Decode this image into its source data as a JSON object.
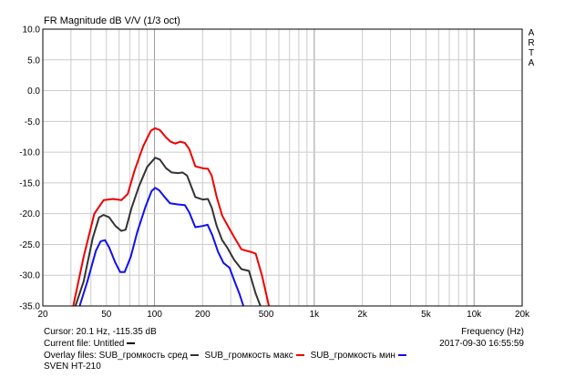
{
  "window": {
    "title": "FR Magnitude dB V/V (1/3 oct)",
    "brand": [
      "A",
      "R",
      "T",
      "A"
    ]
  },
  "chart_data": {
    "type": "line",
    "title": "FR Magnitude dB V/V (1/3 oct)",
    "xlabel": "Frequency (Hz)",
    "ylabel": "",
    "xscale": "log",
    "xlim": [
      20,
      20000
    ],
    "ylim": [
      -35,
      10
    ],
    "grid": true,
    "x_ticks": [
      {
        "v": 20,
        "label": "20"
      },
      {
        "v": 50,
        "label": "50"
      },
      {
        "v": 100,
        "label": "100"
      },
      {
        "v": 200,
        "label": "200"
      },
      {
        "v": 500,
        "label": "500"
      },
      {
        "v": 1000,
        "label": "1k"
      },
      {
        "v": 2000,
        "label": "2k"
      },
      {
        "v": 5000,
        "label": "5k"
      },
      {
        "v": 10000,
        "label": "10k"
      },
      {
        "v": 20000,
        "label": "20k"
      }
    ],
    "y_ticks": [
      {
        "v": 10,
        "label": "10.0"
      },
      {
        "v": 5,
        "label": "5.0"
      },
      {
        "v": 0,
        "label": "0.0"
      },
      {
        "v": -5,
        "label": "-5.0"
      },
      {
        "v": -10,
        "label": "-10.0"
      },
      {
        "v": -15,
        "label": "-15.0"
      },
      {
        "v": -20,
        "label": "-20.0"
      },
      {
        "v": -25,
        "label": "-25.0"
      },
      {
        "v": -30,
        "label": "-30.0"
      },
      {
        "v": -35,
        "label": "-35.0"
      }
    ],
    "series": [
      {
        "name": "SUB_громкость макс",
        "color": "#ee0000",
        "points": [
          [
            31,
            -35
          ],
          [
            36,
            -27
          ],
          [
            42,
            -20
          ],
          [
            48,
            -17.8
          ],
          [
            55,
            -17.6
          ],
          [
            62,
            -17.8
          ],
          [
            68,
            -16.8
          ],
          [
            75,
            -13
          ],
          [
            85,
            -9
          ],
          [
            95,
            -6.5
          ],
          [
            101,
            -6.1
          ],
          [
            108,
            -6.4
          ],
          [
            118,
            -7.6
          ],
          [
            126,
            -8.3
          ],
          [
            135,
            -8.6
          ],
          [
            145,
            -8.3
          ],
          [
            155,
            -8.5
          ],
          [
            165,
            -9.5
          ],
          [
            180,
            -12.3
          ],
          [
            200,
            -12.6
          ],
          [
            216,
            -12.7
          ],
          [
            228,
            -13.8
          ],
          [
            245,
            -17.3
          ],
          [
            265,
            -20.3
          ],
          [
            285,
            -21.8
          ],
          [
            315,
            -23.8
          ],
          [
            350,
            -25.8
          ],
          [
            400,
            -26.2
          ],
          [
            430,
            -26.5
          ],
          [
            470,
            -30
          ],
          [
            520,
            -35
          ]
        ]
      },
      {
        "name": "SUB_громкость сред",
        "color": "#333333",
        "points": [
          [
            32,
            -35
          ],
          [
            36,
            -31
          ],
          [
            41,
            -24
          ],
          [
            45,
            -20.6
          ],
          [
            48,
            -20.2
          ],
          [
            52,
            -20.6
          ],
          [
            57,
            -22
          ],
          [
            62,
            -22.8
          ],
          [
            66,
            -22.6
          ],
          [
            72,
            -19
          ],
          [
            80,
            -15.5
          ],
          [
            90,
            -12.4
          ],
          [
            101,
            -10.9
          ],
          [
            108,
            -11.2
          ],
          [
            118,
            -12.6
          ],
          [
            128,
            -13.3
          ],
          [
            140,
            -13.4
          ],
          [
            150,
            -13.3
          ],
          [
            160,
            -13.8
          ],
          [
            180,
            -17.3
          ],
          [
            200,
            -17.7
          ],
          [
            216,
            -17.6
          ],
          [
            228,
            -19
          ],
          [
            245,
            -22
          ],
          [
            265,
            -24.3
          ],
          [
            285,
            -25.5
          ],
          [
            315,
            -27.5
          ],
          [
            350,
            -29
          ],
          [
            390,
            -29.3
          ],
          [
            430,
            -33
          ],
          [
            460,
            -35
          ]
        ]
      },
      {
        "name": "SUB_громкость мин",
        "color": "#1010ee",
        "points": [
          [
            34,
            -35
          ],
          [
            38,
            -31
          ],
          [
            43,
            -26
          ],
          [
            46,
            -24.5
          ],
          [
            49,
            -24.3
          ],
          [
            52,
            -25.5
          ],
          [
            57,
            -28
          ],
          [
            61,
            -29.5
          ],
          [
            65,
            -29.5
          ],
          [
            71,
            -27
          ],
          [
            78,
            -23
          ],
          [
            88,
            -18.8
          ],
          [
            96,
            -16.3
          ],
          [
            101,
            -15.8
          ],
          [
            107,
            -16.2
          ],
          [
            115,
            -17.2
          ],
          [
            125,
            -18.3
          ],
          [
            140,
            -18.5
          ],
          [
            155,
            -18.6
          ],
          [
            165,
            -19.8
          ],
          [
            180,
            -22.2
          ],
          [
            200,
            -22
          ],
          [
            215,
            -21.8
          ],
          [
            230,
            -23.5
          ],
          [
            250,
            -26.2
          ],
          [
            270,
            -28
          ],
          [
            295,
            -28.8
          ],
          [
            315,
            -30.8
          ],
          [
            340,
            -33
          ],
          [
            360,
            -35
          ]
        ]
      }
    ]
  },
  "status": {
    "cursor": "Cursor: 20.1 Hz, -115.35 dB",
    "frequency_label": "Frequency (Hz)",
    "current_file": "Current file: Untitled",
    "timestamp": "2017-09-30 16:55:59",
    "overlay_prefix": "Overlay files:",
    "overlays": [
      {
        "label": "SUB_громкость сред",
        "color": "#333333"
      },
      {
        "label": "SUB_громкость макс",
        "color": "#ee0000"
      },
      {
        "label": "SUB_громкость мин",
        "color": "#1010ee"
      }
    ],
    "device": "SVEN HT-210"
  }
}
